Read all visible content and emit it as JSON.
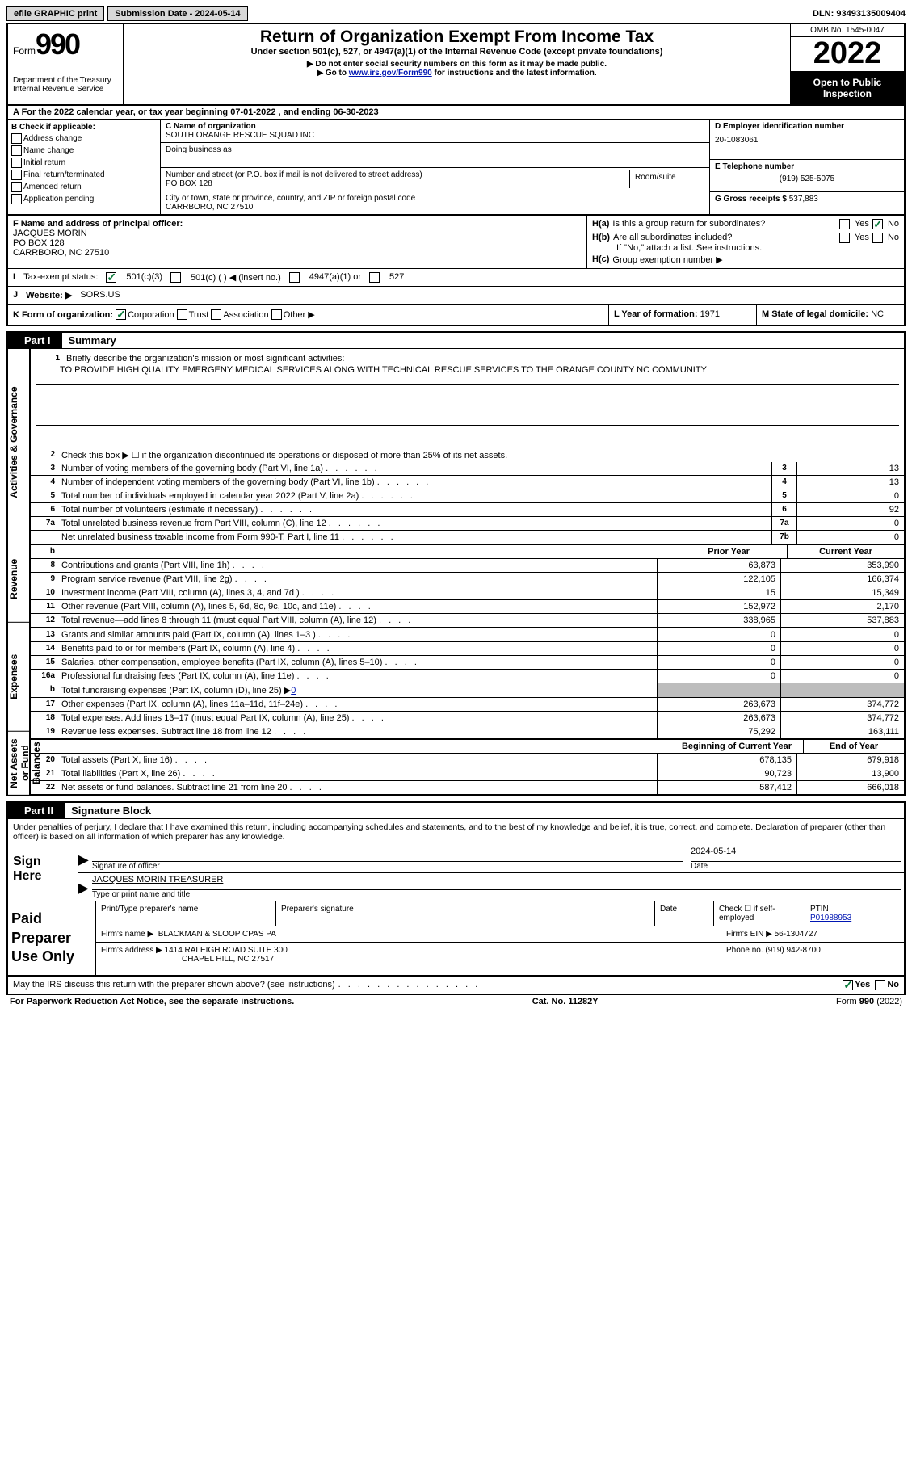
{
  "top_bar": {
    "efile_btn": "efile GRAPHIC print",
    "submission_date_label": "Submission Date - 2024-05-14",
    "dln_label": "DLN: 93493135009404"
  },
  "header": {
    "form_word": "Form",
    "form_number": "990",
    "dept": "Department of the Treasury",
    "irs": "Internal Revenue Service",
    "title": "Return of Organization Exempt From Income Tax",
    "subtitle": "Under section 501(c), 527, or 4947(a)(1) of the Internal Revenue Code (except private foundations)",
    "ssn_note": "▶ Do not enter social security numbers on this form as it may be made public.",
    "goto_prefix": "▶ Go to ",
    "goto_link": "www.irs.gov/Form990",
    "goto_suffix": " for instructions and the latest information.",
    "omb": "OMB No. 1545-0047",
    "year": "2022",
    "open": "Open to Public Inspection"
  },
  "row_a": {
    "prefix": "A For the 2022 calendar year, or tax year beginning ",
    "begin_date": "07-01-2022",
    "mid": " , and ending ",
    "end_date": "06-30-2023"
  },
  "col_b": {
    "label": "B Check if applicable:",
    "addr": "Address change",
    "name": "Name change",
    "initial": "Initial return",
    "final": "Final return/terminated",
    "amended": "Amended return",
    "app": "Application pending"
  },
  "col_c": {
    "name_label": "C Name of organization",
    "org_name": "SOUTH ORANGE RESCUE SQUAD INC",
    "dba_label": "Doing business as",
    "street_label": "Number and street (or P.O. box if mail is not delivered to street address)",
    "street": "PO BOX 128",
    "room_label": "Room/suite",
    "city_label": "City or town, state or province, country, and ZIP or foreign postal code",
    "city": "CARRBORO, NC  27510"
  },
  "col_d": {
    "ein_label": "D Employer identification number",
    "ein": "20-1083061",
    "tel_label": "E Telephone number",
    "tel": "(919) 525-5075",
    "gross_label": "G Gross receipts $",
    "gross": "537,883"
  },
  "row_f": {
    "label": "F Name and address of principal officer:",
    "name": "JACQUES MORIN",
    "street": "PO BOX 128",
    "city": "CARRBORO, NC  27510"
  },
  "row_h": {
    "ha_label": "H(a)",
    "ha_text": "Is this a group return for subordinates?",
    "hb_label": "H(b)",
    "hb_text": "Are all subordinates included?",
    "hb_note": "If \"No,\" attach a list. See instructions.",
    "hc_label": "H(c)",
    "hc_text": "Group exemption number ▶",
    "yes": "Yes",
    "no": "No"
  },
  "row_i": {
    "label": "I",
    "text": "Tax-exempt status:",
    "opt1": "501(c)(3)",
    "opt2": "501(c) (    ) ◀ (insert no.)",
    "opt3": "4947(a)(1) or",
    "opt4": "527"
  },
  "row_j": {
    "label": "J",
    "text": "Website: ▶",
    "url": "SORS.US"
  },
  "row_k": {
    "label": "K Form of organization:",
    "corp": "Corporation",
    "trust": "Trust",
    "assoc": "Association",
    "other": "Other ▶",
    "l_label": "L Year of formation: ",
    "l_val": "1971",
    "m_label": "M State of legal domicile: ",
    "m_val": "NC"
  },
  "part1": {
    "part_label": "Part I",
    "part_title": "Summary",
    "side_tabs": [
      "Activities & Governance",
      "Revenue",
      "Expenses",
      "Net Assets or Fund Balances"
    ],
    "line1_label": "Briefly describe the organization's mission or most significant activities:",
    "mission": "TO PROVIDE HIGH QUALITY EMERGENY MEDICAL SERVICES ALONG WITH TECHNICAL RESCUE SERVICES TO THE ORANGE COUNTY NC COMMUNITY",
    "line2": "Check this box ▶ ☐  if the organization discontinued its operations or disposed of more than 25% of its net assets.",
    "lines_ag": [
      {
        "num": "3",
        "desc": "Number of voting members of the governing body (Part VI, line 1a)",
        "box": "3",
        "val": "13"
      },
      {
        "num": "4",
        "desc": "Number of independent voting members of the governing body (Part VI, line 1b)",
        "box": "4",
        "val": "13"
      },
      {
        "num": "5",
        "desc": "Total number of individuals employed in calendar year 2022 (Part V, line 2a)",
        "box": "5",
        "val": "0"
      },
      {
        "num": "6",
        "desc": "Total number of volunteers (estimate if necessary)",
        "box": "6",
        "val": "92"
      },
      {
        "num": "7a",
        "desc": "Total unrelated business revenue from Part VIII, column (C), line 12",
        "box": "7a",
        "val": "0"
      },
      {
        "num": "",
        "desc": "Net unrelated business taxable income from Form 990-T, Part I, line 11",
        "box": "7b",
        "val": "0"
      }
    ],
    "prior_year": "Prior Year",
    "current_year": "Current Year",
    "lines_rev": [
      {
        "num": "8",
        "desc": "Contributions and grants (Part VIII, line 1h)",
        "py": "63,873",
        "cy": "353,990"
      },
      {
        "num": "9",
        "desc": "Program service revenue (Part VIII, line 2g)",
        "py": "122,105",
        "cy": "166,374"
      },
      {
        "num": "10",
        "desc": "Investment income (Part VIII, column (A), lines 3, 4, and 7d )",
        "py": "15",
        "cy": "15,349"
      },
      {
        "num": "11",
        "desc": "Other revenue (Part VIII, column (A), lines 5, 6d, 8c, 9c, 10c, and 11e)",
        "py": "152,972",
        "cy": "2,170"
      },
      {
        "num": "12",
        "desc": "Total revenue—add lines 8 through 11 (must equal Part VIII, column (A), line 12)",
        "py": "338,965",
        "cy": "537,883"
      }
    ],
    "lines_exp": [
      {
        "num": "13",
        "desc": "Grants and similar amounts paid (Part IX, column (A), lines 1–3 )",
        "py": "0",
        "cy": "0"
      },
      {
        "num": "14",
        "desc": "Benefits paid to or for members (Part IX, column (A), line 4)",
        "py": "0",
        "cy": "0"
      },
      {
        "num": "15",
        "desc": "Salaries, other compensation, employee benefits (Part IX, column (A), lines 5–10)",
        "py": "0",
        "cy": "0"
      },
      {
        "num": "16a",
        "desc": "Professional fundraising fees (Part IX, column (A), line 11e)",
        "py": "0",
        "cy": "0"
      }
    ],
    "line16b": {
      "num": "b",
      "desc": "Total fundraising expenses (Part IX, column (D), line 25) ▶",
      "val": "0"
    },
    "lines_exp2": [
      {
        "num": "17",
        "desc": "Other expenses (Part IX, column (A), lines 11a–11d, 11f–24e)",
        "py": "263,673",
        "cy": "374,772"
      },
      {
        "num": "18",
        "desc": "Total expenses. Add lines 13–17 (must equal Part IX, column (A), line 25)",
        "py": "263,673",
        "cy": "374,772"
      },
      {
        "num": "19",
        "desc": "Revenue less expenses. Subtract line 18 from line 12",
        "py": "75,292",
        "cy": "163,111"
      }
    ],
    "boy": "Beginning of Current Year",
    "eoy": "End of Year",
    "lines_na": [
      {
        "num": "20",
        "desc": "Total assets (Part X, line 16)",
        "py": "678,135",
        "cy": "679,918"
      },
      {
        "num": "21",
        "desc": "Total liabilities (Part X, line 26)",
        "py": "90,723",
        "cy": "13,900"
      },
      {
        "num": "22",
        "desc": "Net assets or fund balances. Subtract line 21 from line 20",
        "py": "587,412",
        "cy": "666,018"
      }
    ]
  },
  "part2": {
    "part_label": "Part II",
    "part_title": "Signature Block",
    "penalty": "Under penalties of perjury, I declare that I have examined this return, including accompanying schedules and statements, and to the best of my knowledge and belief, it is true, correct, and complete. Declaration of preparer (other than officer) is based on all information of which preparer has any knowledge.",
    "sign_here": "Sign Here",
    "sig_officer": "Signature of officer",
    "sig_date": "2024-05-14",
    "date_label": "Date",
    "name_title": "JACQUES MORIN  TREASURER",
    "name_title_label": "Type or print name and title",
    "paid": "Paid Preparer Use Only",
    "prep_name_label": "Print/Type preparer's name",
    "prep_sig_label": "Preparer's signature",
    "prep_date_label": "Date",
    "check_if": "Check ☐ if self-employed",
    "ptin_label": "PTIN",
    "ptin": "P01988953",
    "firm_name_label": "Firm's name    ▶",
    "firm_name": "BLACKMAN & SLOOP CPAS PA",
    "firm_ein_label": "Firm's EIN ▶",
    "firm_ein": "56-1304727",
    "firm_addr_label": "Firm's address ▶",
    "firm_addr1": "1414 RALEIGH ROAD SUITE 300",
    "firm_addr2": "CHAPEL HILL, NC  27517",
    "firm_phone_label": "Phone no.",
    "firm_phone": "(919) 942-8700",
    "discuss": "May the IRS discuss this return with the preparer shown above? (see instructions)",
    "yes": "Yes",
    "no": "No"
  },
  "footer": {
    "pra": "For Paperwork Reduction Act Notice, see the separate instructions.",
    "cat": "Cat. No. 11282Y",
    "form": "Form 990 (2022)"
  },
  "colors": {
    "link": "#0016b3",
    "check": "#0a7a3a",
    "grey": "#bdbdbd"
  }
}
